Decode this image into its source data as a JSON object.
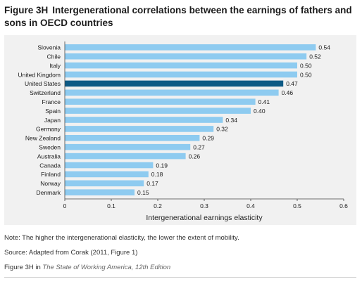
{
  "figure": {
    "number": "Figure 3H",
    "title": "Intergenerational correlations between the earnings of fathers and sons in OECD countries"
  },
  "chart_data": {
    "type": "bar",
    "orientation": "horizontal",
    "categories": [
      "Slovenia",
      "Chile",
      "Italy",
      "United Kingdom",
      "United States",
      "Switzerland",
      "France",
      "Spain",
      "Japan",
      "Germany",
      "New Zealand",
      "Sweden",
      "Australia",
      "Canada",
      "Finland",
      "Norway",
      "Denmark"
    ],
    "values": [
      0.54,
      0.52,
      0.5,
      0.5,
      0.47,
      0.46,
      0.41,
      0.4,
      0.34,
      0.32,
      0.29,
      0.27,
      0.26,
      0.19,
      0.18,
      0.17,
      0.15
    ],
    "value_labels": [
      "0.54",
      "0.52",
      "0.50",
      "0.50",
      "0.47",
      "0.46",
      "0.41",
      "0.40",
      "0.34",
      "0.32",
      "0.29",
      "0.27",
      "0.26",
      "0.19",
      "0.18",
      "0.17",
      "0.15"
    ],
    "highlight": "United States",
    "xlabel": "Intergenerational earnings elasticity",
    "ylabel": "",
    "xlim": [
      0,
      0.6
    ],
    "xticks": [
      "0",
      "0.1",
      "0.2",
      "0.3",
      "0.4",
      "0.5",
      "0.6"
    ],
    "colors": {
      "bar": "#8ecbf0",
      "highlight": "#0d5a85",
      "panel": "#f1f1f1"
    },
    "grid": false
  },
  "notes": {
    "note": "Note: The higher the intergenerational elasticity, the lower the extent of mobility.",
    "source": "Source: Adapted from Corak (2011, Figure 1)"
  },
  "credit": {
    "prefix": "Figure 3H in ",
    "publication": "The State of Working America, 12th Edition"
  }
}
